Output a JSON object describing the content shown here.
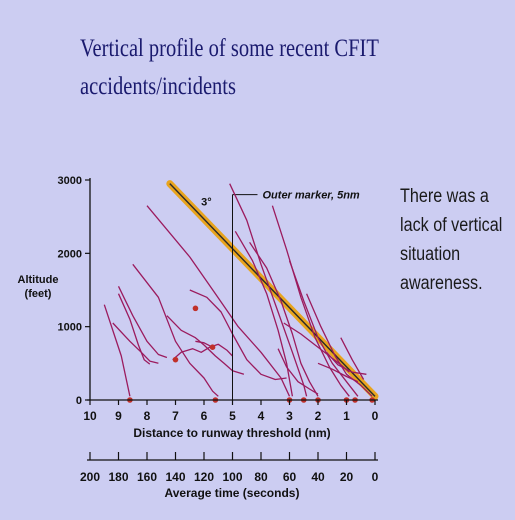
{
  "slide": {
    "title_lines": [
      "Vertical profile of some recent CFIT",
      "accidents/incidents"
    ],
    "note_lines": [
      "There was a",
      "lack of vertical",
      "situation",
      "awareness."
    ]
  },
  "colors": {
    "background": "#cccdf2",
    "title": "#1a1a6e",
    "accident_lines": "#9b1b5e",
    "glide_path": "#e8a41e",
    "impact_marker": "#c0302a",
    "axes": "#111111"
  },
  "chart_data": {
    "type": "line",
    "xlabel": "Distance to runway threshold (nm)",
    "ylabel_lines": [
      "Altitude",
      "(feet)"
    ],
    "x_ticks": [
      10,
      9,
      8,
      7,
      6,
      5,
      4,
      3,
      2,
      1,
      0
    ],
    "x_tick_labels": [
      "10",
      "9",
      "8",
      "7",
      "6",
      "5",
      "4",
      "3",
      "2",
      "1",
      "0"
    ],
    "y_ticks": [
      0,
      1000,
      2000,
      3000
    ],
    "y_tick_labels": [
      "0",
      "1000",
      "2000",
      "3000"
    ],
    "xlim": [
      10,
      0
    ],
    "ylim": [
      0,
      3000
    ],
    "secondary_axis": {
      "label": "Average time (seconds)",
      "ticks": [
        200,
        180,
        160,
        140,
        120,
        100,
        80,
        60,
        40,
        20,
        0
      ],
      "tick_labels": [
        "200",
        "180",
        "160",
        "140",
        "120",
        "100",
        "80",
        "60",
        "40",
        "20",
        "0"
      ]
    },
    "glide_path": {
      "label": "3°",
      "points": [
        [
          7.2,
          2950
        ],
        [
          0,
          50
        ]
      ]
    },
    "outer_marker": {
      "label": "Outer marker, 5nm",
      "x": 5,
      "y_top": 2800
    },
    "series": [
      {
        "points": [
          [
            8,
            2650
          ],
          [
            6.5,
            1950
          ],
          [
            5.6,
            1450
          ],
          [
            4.8,
            1000
          ],
          [
            4,
            650
          ],
          [
            3.3,
            300
          ],
          [
            3,
            50
          ]
        ]
      },
      {
        "points": [
          [
            9.5,
            1300
          ],
          [
            8.9,
            600
          ],
          [
            8.6,
            50
          ]
        ]
      },
      {
        "points": [
          [
            9,
            1550
          ],
          [
            8.5,
            1150
          ],
          [
            8,
            800
          ],
          [
            7.6,
            620
          ],
          [
            7.3,
            580
          ]
        ]
      },
      {
        "points": [
          [
            9,
            1450
          ],
          [
            8.6,
            1100
          ],
          [
            8.3,
            750
          ],
          [
            8.1,
            550
          ],
          [
            7.9,
            490
          ]
        ]
      },
      {
        "points": [
          [
            9.2,
            1050
          ],
          [
            8.6,
            800
          ],
          [
            8.2,
            650
          ],
          [
            7.9,
            530
          ],
          [
            7.6,
            500
          ]
        ]
      },
      {
        "points": [
          [
            8.5,
            1850
          ],
          [
            7.6,
            1400
          ],
          [
            7,
            800
          ],
          [
            6.5,
            500
          ],
          [
            6,
            300
          ],
          [
            5.7,
            120
          ],
          [
            5.5,
            50
          ]
        ]
      },
      {
        "points": [
          [
            7.3,
            1150
          ],
          [
            6.8,
            950
          ],
          [
            6.3,
            850
          ],
          [
            6,
            750
          ],
          [
            5.6,
            600
          ],
          [
            5.3,
            500
          ],
          [
            5,
            400
          ],
          [
            4.6,
            350
          ]
        ]
      },
      {
        "points": [
          [
            6.5,
            1500
          ],
          [
            5.9,
            1400
          ],
          [
            5.4,
            1200
          ],
          [
            5,
            900
          ],
          [
            4.5,
            550
          ],
          [
            4,
            350
          ],
          [
            3.5,
            280
          ],
          [
            3.1,
            300
          ]
        ]
      },
      {
        "points": [
          [
            7.1,
            550
          ],
          [
            6.8,
            650
          ],
          [
            6.4,
            700
          ],
          [
            6.1,
            650
          ],
          [
            5.8,
            720
          ],
          [
            5.5,
            760
          ],
          [
            5.2,
            680
          ],
          [
            5,
            600
          ]
        ]
      },
      {
        "points": [
          [
            6.3,
            800
          ],
          [
            6,
            780
          ],
          [
            5.7,
            720
          ]
        ]
      },
      {
        "points": [
          [
            5.1,
            2950
          ],
          [
            4.5,
            2450
          ],
          [
            4,
            1850
          ],
          [
            3.4,
            1200
          ],
          [
            2.9,
            650
          ],
          [
            2.5,
            200
          ],
          [
            2.4,
            50
          ]
        ]
      },
      {
        "points": [
          [
            4.9,
            2300
          ],
          [
            4.3,
            1900
          ],
          [
            3.8,
            1450
          ],
          [
            3.4,
            950
          ],
          [
            3.1,
            500
          ],
          [
            2.9,
            50
          ]
        ]
      },
      {
        "points": [
          [
            4.4,
            2150
          ],
          [
            3.8,
            1800
          ],
          [
            3.3,
            1350
          ],
          [
            2.9,
            900
          ],
          [
            2.6,
            500
          ],
          [
            2.3,
            250
          ],
          [
            2,
            50
          ]
        ]
      },
      {
        "points": [
          [
            3.6,
            2650
          ],
          [
            3.1,
            2050
          ],
          [
            2.6,
            1400
          ],
          [
            2.1,
            850
          ],
          [
            1.6,
            450
          ],
          [
            1.2,
            200
          ],
          [
            0.9,
            50
          ]
        ]
      },
      {
        "points": [
          [
            3,
            1900
          ],
          [
            2.5,
            1350
          ],
          [
            2,
            850
          ],
          [
            1.5,
            500
          ],
          [
            1,
            250
          ],
          [
            0.6,
            50
          ]
        ]
      },
      {
        "points": [
          [
            3.2,
            1050
          ],
          [
            2.6,
            900
          ],
          [
            2.1,
            750
          ],
          [
            1.6,
            600
          ],
          [
            1.2,
            480
          ],
          [
            0.9,
            380
          ]
        ]
      },
      {
        "points": [
          [
            3.4,
            700
          ],
          [
            3.1,
            450
          ],
          [
            2.7,
            250
          ],
          [
            2.3,
            150
          ],
          [
            2,
            80
          ]
        ]
      },
      {
        "points": [
          [
            2.4,
            1450
          ],
          [
            1.9,
            1000
          ],
          [
            1.4,
            600
          ],
          [
            1,
            350
          ],
          [
            0.5,
            200
          ],
          [
            0.1,
            50
          ]
        ]
      },
      {
        "points": [
          [
            1.7,
            650
          ],
          [
            1.3,
            480
          ],
          [
            0.8,
            380
          ],
          [
            0.3,
            350
          ]
        ]
      },
      {
        "points": [
          [
            2,
            500
          ],
          [
            1.5,
            420
          ],
          [
            1,
            320
          ],
          [
            0.6,
            250
          ]
        ]
      },
      {
        "points": [
          [
            1.2,
            850
          ],
          [
            0.8,
            550
          ],
          [
            0.4,
            280
          ]
        ]
      }
    ],
    "impact_points": [
      [
        8.6,
        0
      ],
      [
        5.6,
        0
      ],
      [
        3,
        0
      ],
      [
        2.5,
        0
      ],
      [
        2,
        0
      ],
      [
        1,
        0
      ],
      [
        0.7,
        0
      ],
      [
        0.1,
        0
      ],
      [
        6.3,
        1250
      ],
      [
        7,
        550
      ],
      [
        5.7,
        720
      ]
    ]
  }
}
